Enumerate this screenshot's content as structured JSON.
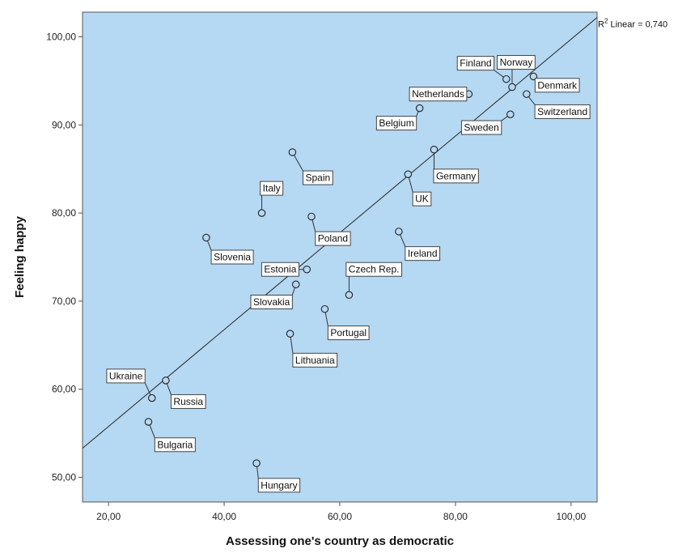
{
  "chart_data": {
    "type": "scatter",
    "title": "",
    "xlabel": "Assessing one's country as democratic",
    "ylabel": "Feeling happy",
    "xlim": [
      15.5,
      104.5
    ],
    "ylim": [
      47.2,
      102.8
    ],
    "x_ticks": [
      20,
      40,
      60,
      80,
      100
    ],
    "y_ticks": [
      50,
      60,
      70,
      80,
      90,
      100
    ],
    "x_tick_labels": [
      "20,00",
      "40,00",
      "60,00",
      "80,00",
      "100,00"
    ],
    "y_tick_labels": [
      "50,00",
      "60,00",
      "70,00",
      "80,00",
      "90,00",
      "100,00"
    ],
    "grid": false,
    "background_color": "#b5d8f3",
    "fit_line": {
      "label_prefix": "R",
      "label_sup": "2",
      "label_suffix": " Linear = 0,740",
      "x": [
        15.5,
        104.5
      ],
      "y": [
        53.3,
        102.2
      ]
    },
    "points": [
      {
        "name": "Finland",
        "x": 88.8,
        "y": 95.2,
        "lx": 83.5,
        "ly": 97.0
      },
      {
        "name": "Norway",
        "x": 89.8,
        "y": 94.3,
        "lx": 90.5,
        "ly": 97.1
      },
      {
        "name": "Denmark",
        "x": 93.5,
        "y": 95.5,
        "lx": 97.6,
        "ly": 94.5
      },
      {
        "name": "Netherlands",
        "x": 82.3,
        "y": 93.5,
        "lx": 77.0,
        "ly": 93.5
      },
      {
        "name": "Switzerland",
        "x": 92.3,
        "y": 93.5,
        "lx": 98.5,
        "ly": 91.5
      },
      {
        "name": "Belgium",
        "x": 73.8,
        "y": 91.9,
        "lx": 69.8,
        "ly": 90.2
      },
      {
        "name": "Sweden",
        "x": 89.5,
        "y": 91.2,
        "lx": 84.5,
        "ly": 89.7
      },
      {
        "name": "Germany",
        "x": 76.3,
        "y": 87.2,
        "lx": 80.1,
        "ly": 84.2
      },
      {
        "name": "Spain",
        "x": 51.8,
        "y": 86.9,
        "lx": 56.2,
        "ly": 84.0
      },
      {
        "name": "UK",
        "x": 71.8,
        "y": 84.4,
        "lx": 74.2,
        "ly": 81.6
      },
      {
        "name": "Italy",
        "x": 46.5,
        "y": 80.0,
        "lx": 48.2,
        "ly": 82.8
      },
      {
        "name": "Poland",
        "x": 55.1,
        "y": 79.6,
        "lx": 58.8,
        "ly": 77.1
      },
      {
        "name": "Ireland",
        "x": 70.2,
        "y": 77.9,
        "lx": 74.3,
        "ly": 75.4
      },
      {
        "name": "Slovenia",
        "x": 36.9,
        "y": 77.2,
        "lx": 41.4,
        "ly": 75.0
      },
      {
        "name": "Estonia",
        "x": 54.3,
        "y": 73.6,
        "lx": 49.7,
        "ly": 73.6
      },
      {
        "name": "Czech Rep.",
        "x": 61.6,
        "y": 70.7,
        "lx": 65.9,
        "ly": 73.6
      },
      {
        "name": "Slovakia",
        "x": 52.4,
        "y": 71.9,
        "lx": 48.2,
        "ly": 69.9
      },
      {
        "name": "Portugal",
        "x": 57.4,
        "y": 69.1,
        "lx": 61.5,
        "ly": 66.4
      },
      {
        "name": "Lithuania",
        "x": 51.4,
        "y": 66.3,
        "lx": 55.7,
        "ly": 63.3
      },
      {
        "name": "Ukraine",
        "x": 27.5,
        "y": 59.0,
        "lx": 23.0,
        "ly": 61.5
      },
      {
        "name": "Russia",
        "x": 29.9,
        "y": 61.0,
        "lx": 33.8,
        "ly": 58.6
      },
      {
        "name": "Bulgaria",
        "x": 26.9,
        "y": 56.3,
        "lx": 31.5,
        "ly": 53.7
      },
      {
        "name": "Hungary",
        "x": 45.6,
        "y": 51.6,
        "lx": 49.5,
        "ly": 49.1
      }
    ]
  }
}
